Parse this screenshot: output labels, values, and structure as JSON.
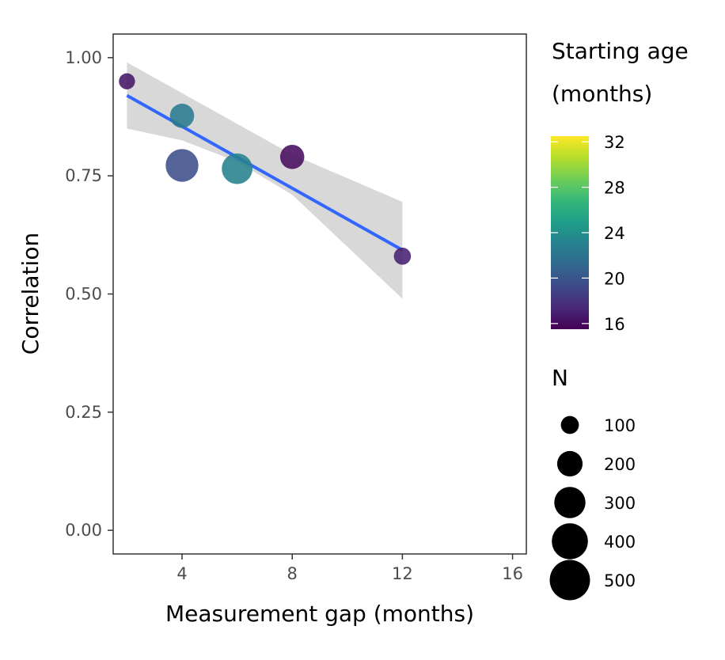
{
  "chart_data": {
    "type": "scatter",
    "xlabel": "Measurement gap (months)",
    "ylabel": "Correlation",
    "xlim": [
      1.5,
      16.5
    ],
    "ylim": [
      -0.05,
      1.05
    ],
    "x_ticks": [
      4,
      8,
      12,
      16
    ],
    "x_tick_labels": [
      "4",
      "8",
      "12",
      "16"
    ],
    "y_ticks": [
      0,
      0.25,
      0.5,
      0.75,
      1.0
    ],
    "y_tick_labels": [
      "0.00",
      "0.25",
      "0.50",
      "0.75",
      "1.00"
    ],
    "grid": false,
    "points": [
      {
        "x": 2,
        "y": 0.95,
        "n": 80,
        "age": 16.5
      },
      {
        "x": 4,
        "y": 0.877,
        "n": 180,
        "age": 22.5
      },
      {
        "x": 4,
        "y": 0.772,
        "n": 330,
        "age": 19.5
      },
      {
        "x": 6,
        "y": 0.765,
        "n": 290,
        "age": 23.0
      },
      {
        "x": 8,
        "y": 0.79,
        "n": 180,
        "age": 16.0
      },
      {
        "x": 12,
        "y": 0.58,
        "n": 90,
        "age": 17.0
      }
    ],
    "fit_line": {
      "method": "linear",
      "color": "#3366FF",
      "x": [
        2,
        12
      ],
      "y": [
        0.92,
        0.593
      ],
      "ci_x": [
        2,
        4,
        6,
        8,
        10,
        12
      ],
      "ci_upper": [
        0.99,
        0.925,
        0.86,
        0.795,
        0.745,
        0.695
      ],
      "ci_lower": [
        0.85,
        0.825,
        0.78,
        0.71,
        0.6,
        0.49
      ]
    },
    "legend": {
      "placement": "right",
      "color": {
        "title_lines": [
          "Starting age",
          "(months)"
        ],
        "min": 15.5,
        "max": 32.5,
        "ticks": [
          16,
          20,
          24,
          28,
          32
        ],
        "palette": [
          "#440154",
          "#482878",
          "#3e4989",
          "#31688e",
          "#26828e",
          "#1f9e89",
          "#35b779",
          "#6ece58",
          "#b5de2b",
          "#fde725"
        ]
      },
      "size": {
        "title": "N",
        "values": [
          100,
          200,
          300,
          400,
          500
        ],
        "labels": [
          "100",
          "200",
          "300",
          "400",
          "500"
        ],
        "color": "#000000"
      }
    }
  }
}
